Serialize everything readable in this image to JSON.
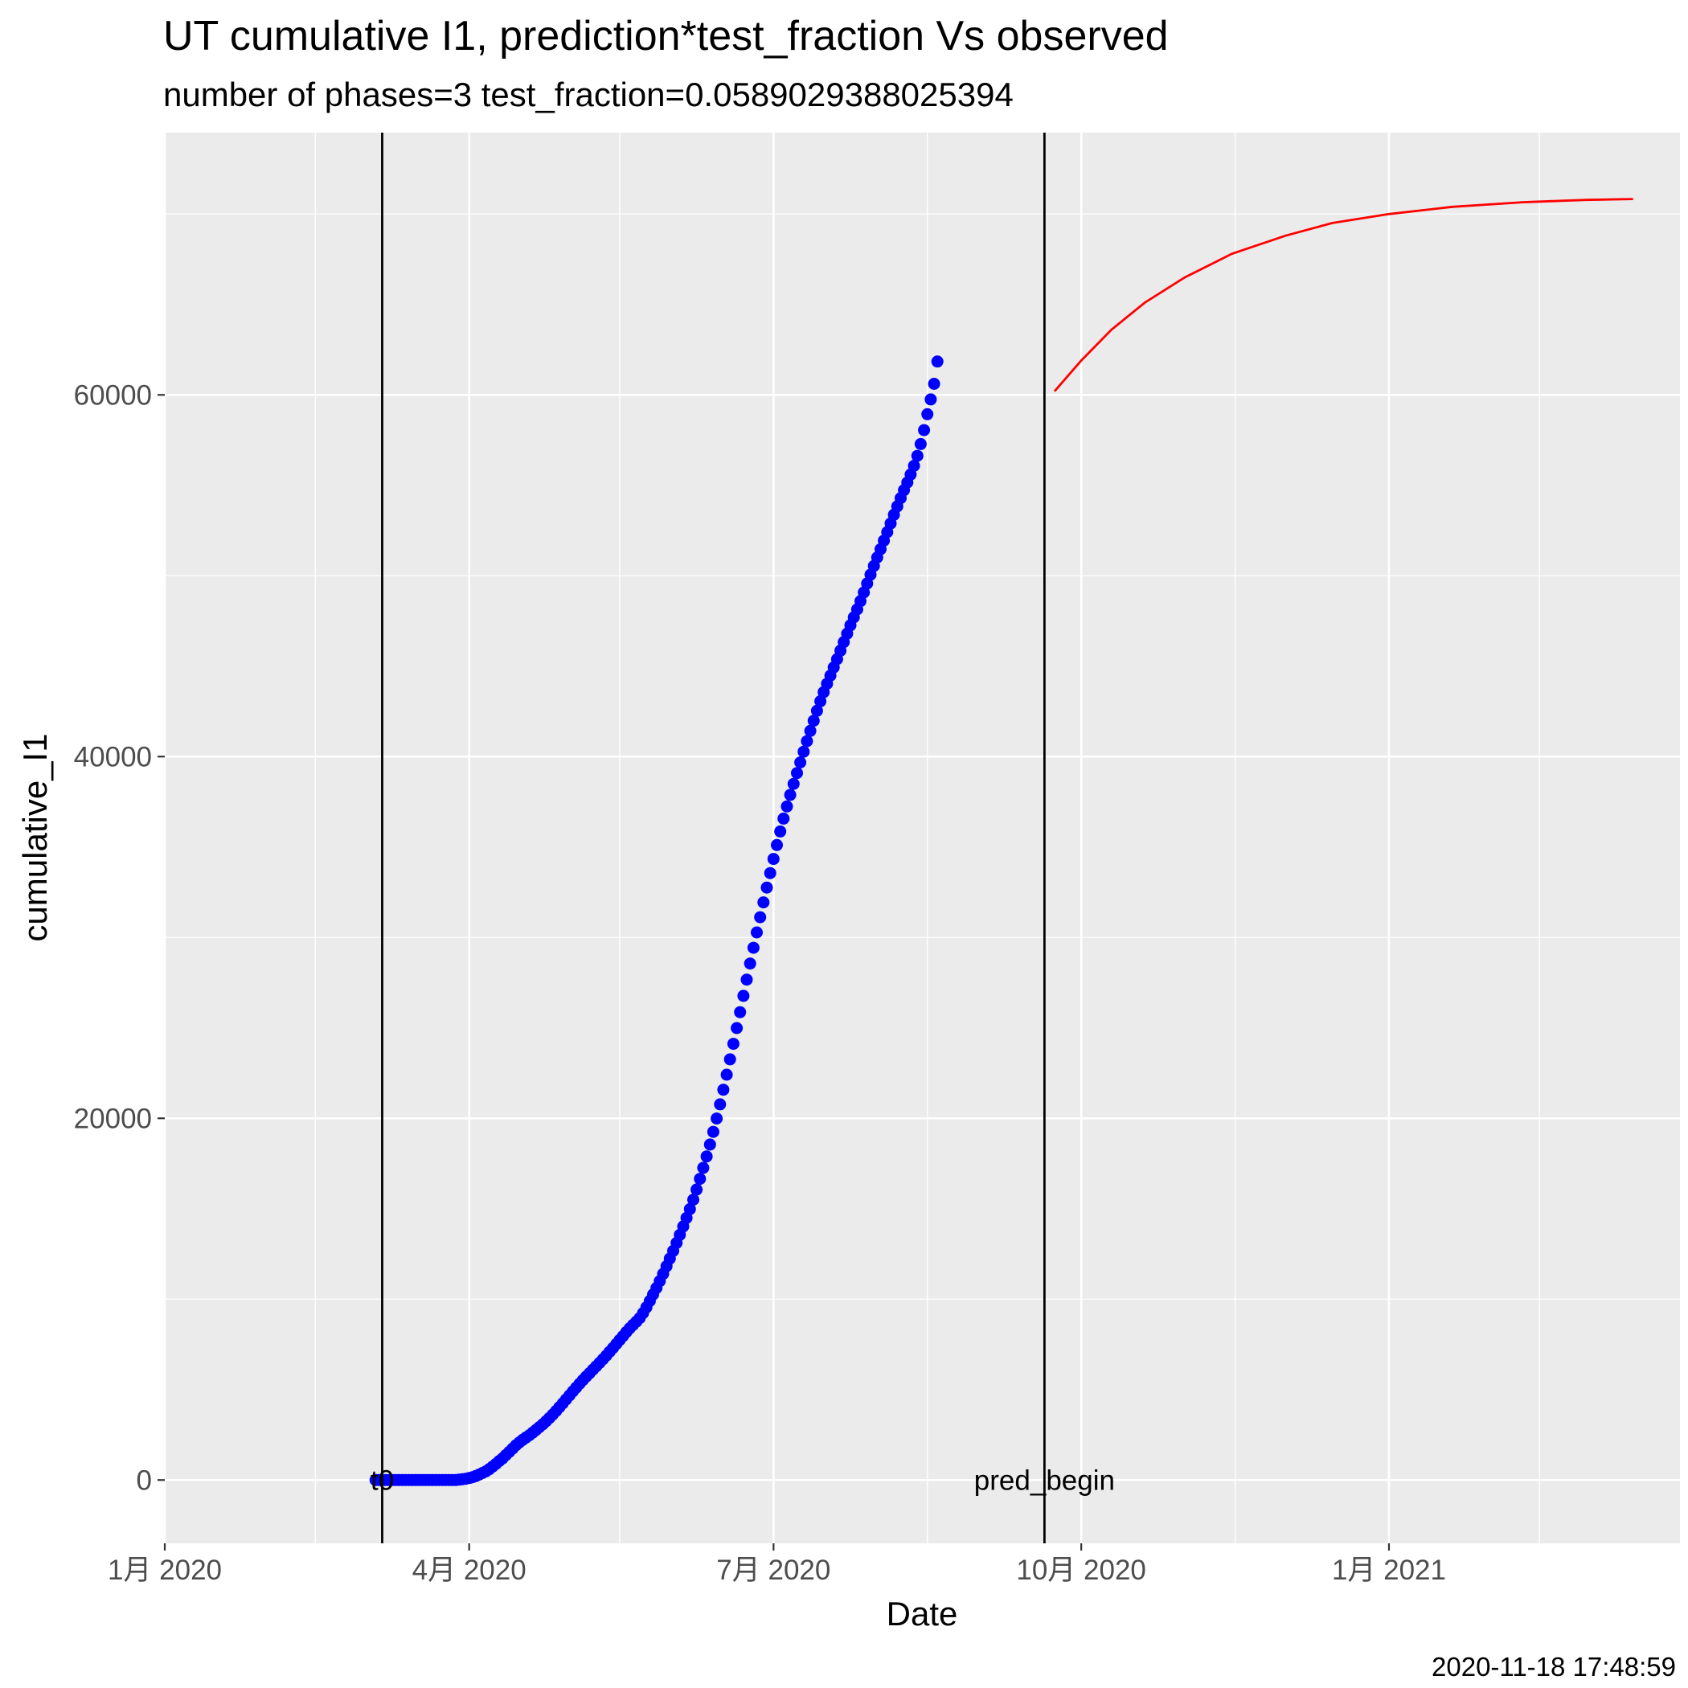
{
  "chart_data": {
    "type": "scatter",
    "title": "UT cumulative I1,  prediction*test_fraction Vs observed",
    "subtitle": "number of phases=3   test_fraction=0.0589029388025394",
    "xlabel": "Date",
    "ylabel": "cumulative_I1",
    "caption": "2020-11-18 17:48:59",
    "xlim": [
      "2020-01-01",
      "2021-03-29"
    ],
    "ylim": [
      -3500,
      74500
    ],
    "grid": true,
    "x_ticks": [
      {
        "date": "2020-01-01",
        "label": "1月 2020"
      },
      {
        "date": "2020-04-01",
        "label": "4月 2020"
      },
      {
        "date": "2020-07-01",
        "label": "7月 2020"
      },
      {
        "date": "2020-10-01",
        "label": "10月 2020"
      },
      {
        "date": "2021-01-01",
        "label": "1月 2021"
      }
    ],
    "x_minor_ticks": [
      "2020-02-15",
      "2020-05-16",
      "2020-08-16",
      "2020-11-16",
      "2021-02-15"
    ],
    "y_ticks": [
      0,
      20000,
      40000,
      60000
    ],
    "y_minor_ticks": [
      10000,
      30000,
      50000,
      70000
    ],
    "vlines": [
      {
        "date": "2020-03-06",
        "label": "t0"
      },
      {
        "date": "2020-09-20",
        "label": "pred_begin"
      }
    ],
    "series": [
      {
        "kind": "points",
        "color": "#0000ff",
        "x_start": "2020-03-04",
        "x_end": "2020-09-23",
        "values": [
          0,
          0,
          0,
          0,
          0,
          0,
          0,
          0,
          0,
          0,
          0,
          0,
          0,
          0,
          0,
          0,
          0,
          0,
          0,
          0,
          0,
          0,
          0,
          0,
          0,
          20,
          40,
          70,
          110,
          160,
          220,
          300,
          390,
          480,
          600,
          740,
          890,
          1050,
          1200,
          1380,
          1560,
          1740,
          1920,
          2080,
          2220,
          2350,
          2480,
          2620,
          2770,
          2920,
          3080,
          3250,
          3430,
          3620,
          3820,
          4030,
          4240,
          4460,
          4680,
          4900,
          5110,
          5320,
          5520,
          5720,
          5910,
          6100,
          6290,
          6480,
          6680,
          6880,
          7090,
          7300,
          7520,
          7740,
          7960,
          8180,
          8390,
          8580,
          8760,
          8960,
          9230,
          9550,
          9900,
          10260,
          10620,
          11000,
          11400,
          11820,
          12240,
          12670,
          13110,
          13560,
          14020,
          14490,
          14980,
          15500,
          16060,
          16650,
          17260,
          17890,
          18550,
          19250,
          19990,
          20770,
          21580,
          22410,
          23260,
          24120,
          24990,
          25870,
          26770,
          27670,
          28560,
          29430,
          30280,
          31120,
          31940,
          32760,
          33560,
          34340,
          35110,
          35860,
          36570,
          37240,
          37880,
          38490,
          39090,
          39680,
          40270,
          40850,
          41420,
          41980,
          42530,
          43060,
          43560,
          44030,
          44480,
          44930,
          45390,
          45860,
          46330,
          46800,
          47260,
          47700,
          48140,
          48600,
          49080,
          49570,
          50060,
          50540,
          51010,
          51470,
          51940,
          52410,
          52890,
          53370,
          53840,
          54290,
          54730,
          55160,
          55600,
          56080,
          56630,
          57280,
          58050,
          58930,
          59750,
          60610,
          61840
        ]
      },
      {
        "kind": "line",
        "color": "#ff0000",
        "points": [
          {
            "date": "2020-09-23",
            "value": 60200
          },
          {
            "date": "2020-10-01",
            "value": 61900
          },
          {
            "date": "2020-10-10",
            "value": 63600
          },
          {
            "date": "2020-10-20",
            "value": 65100
          },
          {
            "date": "2020-11-01",
            "value": 66500
          },
          {
            "date": "2020-11-15",
            "value": 67800
          },
          {
            "date": "2020-12-01",
            "value": 68800
          },
          {
            "date": "2020-12-15",
            "value": 69500
          },
          {
            "date": "2021-01-01",
            "value": 70000
          },
          {
            "date": "2021-01-20",
            "value": 70400
          },
          {
            "date": "2021-02-10",
            "value": 70650
          },
          {
            "date": "2021-03-01",
            "value": 70780
          },
          {
            "date": "2021-03-15",
            "value": 70830
          }
        ]
      }
    ]
  }
}
